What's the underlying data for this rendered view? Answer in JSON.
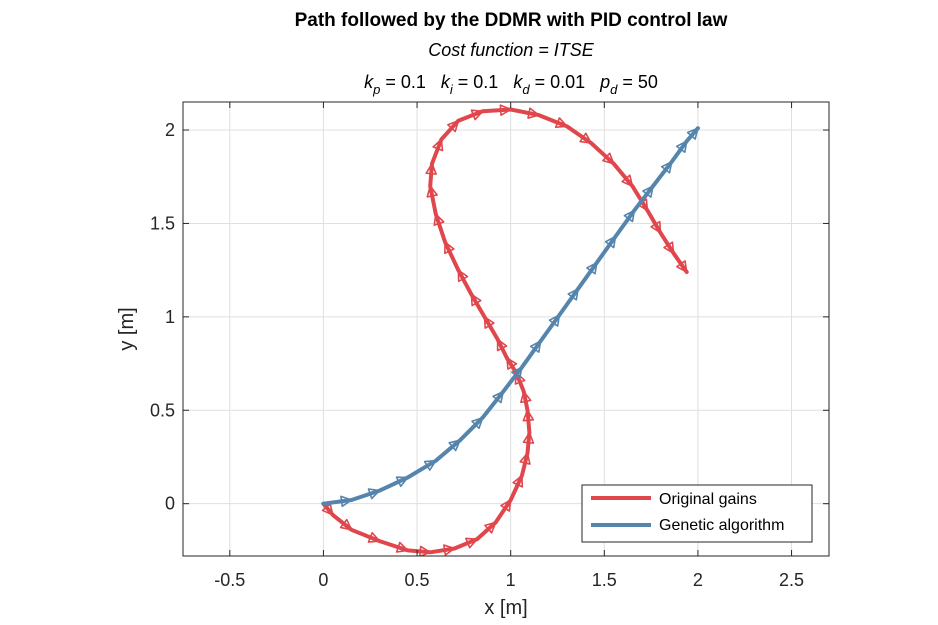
{
  "chart_data": {
    "type": "line",
    "title": "Path followed by the DDMR with PID control law",
    "subtitle1": "Cost function = ITSE",
    "params": [
      {
        "sym": "k",
        "sub": "p",
        "val": " = 0.1"
      },
      {
        "sym": "k",
        "sub": "i",
        "val": " = 0.1"
      },
      {
        "sym": "k",
        "sub": "d",
        "val": " = 0.01"
      },
      {
        "sym": "p",
        "sub": "d",
        "val": " = 50"
      }
    ],
    "xlabel": "x [m]",
    "ylabel": "y [m]",
    "xlim": [
      -0.75,
      2.7
    ],
    "ylim": [
      -0.28,
      2.15
    ],
    "xticks": [
      -0.5,
      0,
      0.5,
      1,
      1.5,
      2,
      2.5
    ],
    "xtick_labels": [
      "-0.5",
      "0",
      "0.5",
      "1",
      "1.5",
      "2",
      "2.5"
    ],
    "yticks": [
      0,
      0.5,
      1,
      1.5,
      2
    ],
    "ytick_labels": [
      "0",
      "0.5",
      "1",
      "1.5",
      "2"
    ],
    "grid": true,
    "legend_position": "bottom-right",
    "series": [
      {
        "name": "Original gains",
        "color": "#e0474c",
        "x": [
          0.0,
          0.05,
          0.15,
          0.3,
          0.45,
          0.57,
          0.7,
          0.82,
          0.92,
          1.0,
          1.06,
          1.09,
          1.1,
          1.09,
          1.07,
          1.03,
          0.98,
          0.93,
          0.86,
          0.79,
          0.72,
          0.65,
          0.6,
          0.57,
          0.58,
          0.63,
          0.72,
          0.85,
          1.0,
          1.15,
          1.3,
          1.43,
          1.55,
          1.65,
          1.73,
          1.8,
          1.87,
          1.94
        ],
        "y": [
          0.0,
          -0.06,
          -0.14,
          -0.2,
          -0.25,
          -0.26,
          -0.24,
          -0.19,
          -0.1,
          0.02,
          0.15,
          0.27,
          0.38,
          0.5,
          0.6,
          0.7,
          0.78,
          0.88,
          1.0,
          1.12,
          1.25,
          1.4,
          1.55,
          1.7,
          1.82,
          1.95,
          2.05,
          2.1,
          2.11,
          2.08,
          2.02,
          1.93,
          1.82,
          1.7,
          1.57,
          1.45,
          1.34,
          1.24
        ]
      },
      {
        "name": "Genetic algorithm",
        "color": "#5585ad",
        "x": [
          0.0,
          0.15,
          0.3,
          0.45,
          0.6,
          0.73,
          0.85,
          0.96,
          1.06,
          1.16,
          1.26,
          1.36,
          1.46,
          1.56,
          1.66,
          1.76,
          1.86,
          1.94,
          2.0
        ],
        "y": [
          0.0,
          0.02,
          0.07,
          0.14,
          0.23,
          0.34,
          0.46,
          0.6,
          0.73,
          0.87,
          1.01,
          1.15,
          1.29,
          1.43,
          1.57,
          1.7,
          1.83,
          1.94,
          2.01
        ]
      }
    ]
  }
}
